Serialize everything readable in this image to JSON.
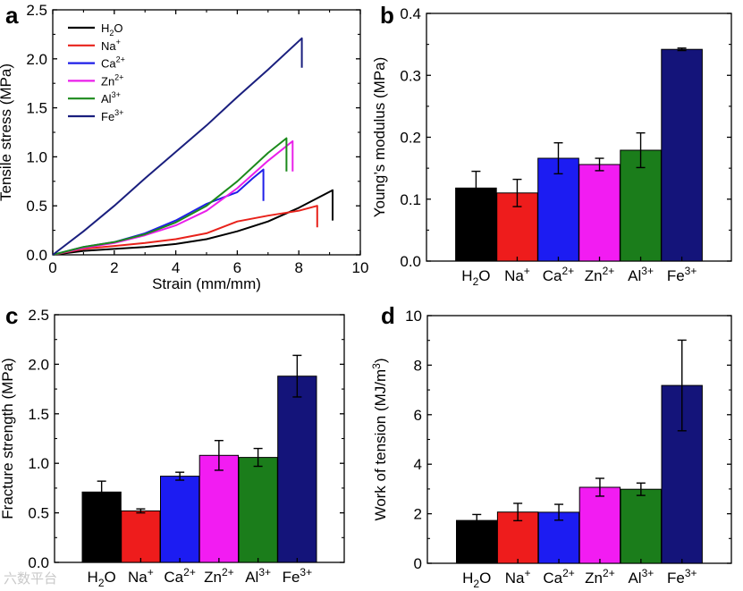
{
  "chart_data": [
    {
      "type": "line",
      "panel": "a",
      "xlabel": "Strain (mm/mm)",
      "ylabel": "Tensile stress (MPa)",
      "xlim": [
        0,
        10
      ],
      "ylim": [
        0,
        2.5
      ],
      "xticks": [
        "0",
        "2",
        "4",
        "6",
        "8",
        "10"
      ],
      "yticks": [
        "0.0",
        "0.5",
        "1.0",
        "1.5",
        "2.0",
        "2.5"
      ],
      "legend_position": "top-left",
      "series": [
        {
          "name": "H2O",
          "sup": "",
          "sub": "2",
          "color": "#000000",
          "x": [
            0,
            1,
            2,
            3,
            4,
            5,
            6,
            7,
            8,
            9.1
          ],
          "y": [
            0,
            0.04,
            0.06,
            0.08,
            0.11,
            0.16,
            0.24,
            0.34,
            0.48,
            0.66
          ],
          "break_to": 0.35
        },
        {
          "name": "Na+",
          "sup": "+",
          "color": "#e8221b",
          "x": [
            0,
            1,
            2,
            3,
            4,
            5,
            6,
            7,
            8,
            8.6
          ],
          "y": [
            0,
            0.06,
            0.09,
            0.12,
            0.16,
            0.22,
            0.34,
            0.4,
            0.45,
            0.5
          ],
          "break_to": 0.28
        },
        {
          "name": "Ca2+",
          "sup": "2+",
          "color": "#1f1fe8",
          "x": [
            0,
            1,
            2,
            3,
            4,
            5,
            6,
            6.5,
            6.85
          ],
          "y": [
            0,
            0.08,
            0.13,
            0.22,
            0.35,
            0.52,
            0.64,
            0.78,
            0.87
          ],
          "break_to": 0.55
        },
        {
          "name": "Zn2+",
          "sup": "2+",
          "color": "#ea1fea",
          "x": [
            0,
            1,
            2,
            3,
            4,
            5,
            6,
            7,
            7.8
          ],
          "y": [
            0,
            0.07,
            0.12,
            0.2,
            0.3,
            0.45,
            0.68,
            0.96,
            1.16
          ],
          "break_to": 0.85
        },
        {
          "name": "Al3+",
          "sup": "3+",
          "color": "#1b8a1b",
          "x": [
            0,
            1,
            2,
            3,
            4,
            5,
            6,
            7,
            7.6
          ],
          "y": [
            0,
            0.08,
            0.13,
            0.21,
            0.33,
            0.5,
            0.75,
            1.04,
            1.19
          ],
          "break_to": 0.85
        },
        {
          "name": "Fe3+",
          "sup": "3+",
          "color": "#1a1f7e",
          "x": [
            0,
            1,
            2,
            3,
            4,
            5,
            6,
            7,
            8.1
          ],
          "y": [
            0,
            0.24,
            0.5,
            0.78,
            1.05,
            1.32,
            1.61,
            1.89,
            2.21
          ],
          "break_to": 1.91
        }
      ]
    },
    {
      "type": "bar",
      "panel": "b",
      "ylabel": "Young’s modulus (MPa)",
      "ylim": [
        0,
        0.4
      ],
      "yticks": [
        "0.0",
        "0.1",
        "0.2",
        "0.3",
        "0.4"
      ],
      "categories": [
        "H2O",
        "Na+",
        "Ca2+",
        "Zn2+",
        "Al3+",
        "Fe3+"
      ],
      "values": [
        0.118,
        0.11,
        0.166,
        0.156,
        0.179,
        0.342
      ],
      "errors": [
        0.027,
        0.022,
        0.025,
        0.01,
        0.028,
        0.002
      ]
    },
    {
      "type": "bar",
      "panel": "c",
      "ylabel": "Fracture strength (MPa)",
      "ylim": [
        0,
        2.5
      ],
      "yticks": [
        "0.0",
        "0.5",
        "1.0",
        "1.5",
        "2.0",
        "2.5"
      ],
      "categories": [
        "H2O",
        "Na+",
        "Ca2+",
        "Zn2+",
        "Al3+",
        "Fe3+"
      ],
      "values": [
        0.71,
        0.52,
        0.87,
        1.08,
        1.06,
        1.88
      ],
      "errors": [
        0.11,
        0.02,
        0.04,
        0.15,
        0.09,
        0.21
      ]
    },
    {
      "type": "bar",
      "panel": "d",
      "ylabel": "Work of tension (MJ/m",
      "ylabel_sup": "3",
      "ylabel_end": ")",
      "ylim": [
        0,
        10
      ],
      "yticks": [
        "0",
        "2",
        "4",
        "6",
        "8",
        "10"
      ],
      "categories": [
        "H2O",
        "Na+",
        "Ca2+",
        "Zn2+",
        "Al3+",
        "Fe3+"
      ],
      "values": [
        1.73,
        2.07,
        2.06,
        3.07,
        2.99,
        7.18
      ],
      "errors": [
        0.24,
        0.35,
        0.32,
        0.36,
        0.25,
        1.83
      ]
    }
  ],
  "category_labels": [
    {
      "base": "H",
      "sub": "2",
      "tail": "O",
      "sup": ""
    },
    {
      "base": "Na",
      "sub": "",
      "tail": "",
      "sup": "+"
    },
    {
      "base": "Ca",
      "sub": "",
      "tail": "",
      "sup": "2+"
    },
    {
      "base": "Zn",
      "sub": "",
      "tail": "",
      "sup": "2+"
    },
    {
      "base": "Al",
      "sub": "",
      "tail": "",
      "sup": "3+"
    },
    {
      "base": "Fe",
      "sub": "",
      "tail": "",
      "sup": "3+"
    }
  ],
  "bar_colors": [
    "#000000",
    "#ee1c1c",
    "#1c1cf2",
    "#f21cf2",
    "#1b7d1b",
    "#14147a"
  ],
  "watermark": "六数平台"
}
